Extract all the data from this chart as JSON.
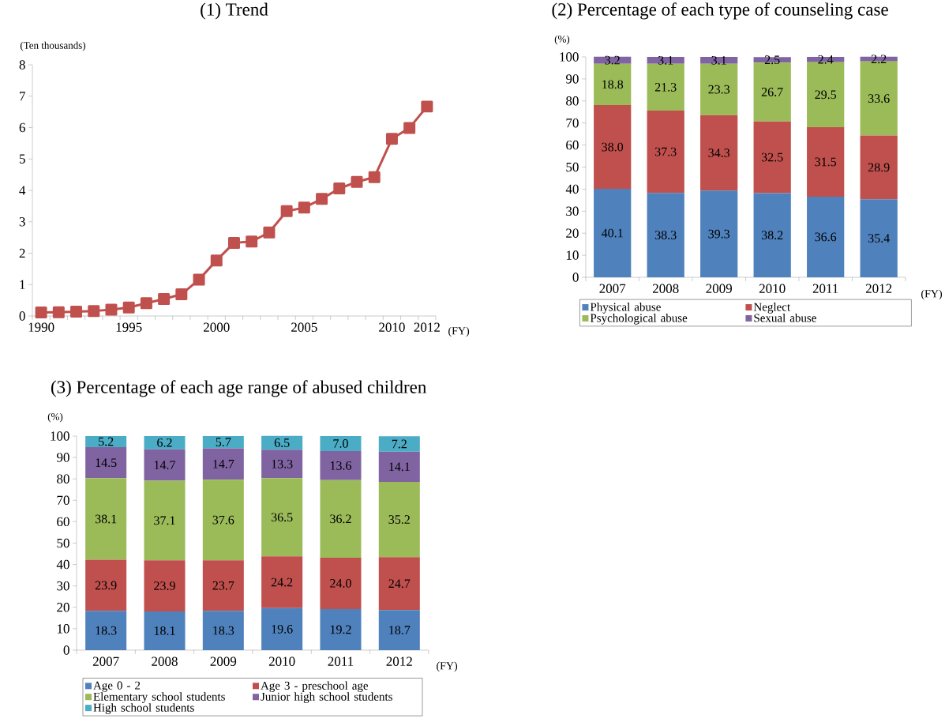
{
  "chart_data": [
    {
      "type": "line",
      "title": "(1) Trend",
      "ylabel": "(Ten thousands)",
      "xlabel": "(FY)",
      "categories": [
        "1990",
        null,
        null,
        null,
        null,
        "1995",
        null,
        null,
        null,
        null,
        "2000",
        null,
        null,
        null,
        null,
        "2005",
        null,
        null,
        null,
        null,
        "2010",
        null,
        "2012"
      ],
      "values": [
        0.11,
        0.12,
        0.14,
        0.16,
        0.2,
        0.27,
        0.41,
        0.54,
        0.69,
        1.16,
        1.77,
        2.33,
        2.37,
        2.66,
        3.34,
        3.45,
        3.73,
        4.06,
        4.27,
        4.42,
        5.64,
        5.99,
        6.67
      ],
      "color": "#c0504d",
      "marker": "square",
      "ylim": [
        0,
        8
      ],
      "yticks": [
        0,
        1,
        2,
        3,
        4,
        5,
        6,
        7,
        8
      ]
    },
    {
      "type": "bar",
      "stacked": true,
      "title": "(2) Percentage of each type of counseling case",
      "ylabel": "(%)",
      "xlabel": "(FY)",
      "categories": [
        "2007",
        "2008",
        "2009",
        "2010",
        "2011",
        "2012"
      ],
      "series": [
        {
          "name": "Physical abuse",
          "color": "#4f81bd",
          "values": [
            40.1,
            38.3,
            39.3,
            38.2,
            36.6,
            35.4
          ],
          "value_labels": [
            "40.1",
            "38.3",
            "39.3",
            "38.2",
            "36.6",
            "35.4"
          ]
        },
        {
          "name": "Neglect",
          "color": "#c0504d",
          "values": [
            38.0,
            37.3,
            34.3,
            32.5,
            31.5,
            28.9
          ],
          "value_labels": [
            "38.0",
            "37.3",
            "34.3",
            "32.5",
            "31.5",
            "28.9"
          ]
        },
        {
          "name": "Psychological abuse",
          "color": "#9bbb59",
          "values": [
            18.8,
            21.3,
            23.3,
            26.7,
            29.5,
            33.6
          ],
          "value_labels": [
            "18.8",
            "21.3",
            "23.3",
            "26.7",
            "29.5",
            "33.6"
          ]
        },
        {
          "name": "Sexual abuse",
          "color": "#8064a2",
          "values": [
            3.2,
            3.1,
            3.1,
            2.5,
            2.4,
            2.2
          ],
          "value_labels": [
            "3.2",
            "3.1",
            "3.1",
            "2.5",
            "2.4",
            "2.2"
          ]
        }
      ],
      "ylim": [
        0,
        100
      ],
      "yticks": [
        0,
        10,
        20,
        30,
        40,
        50,
        60,
        70,
        80,
        90,
        100
      ],
      "legend": "bottom"
    },
    {
      "type": "bar",
      "stacked": true,
      "title": "(3) Percentage of each age range of abused children",
      "ylabel": "(%)",
      "xlabel": "(FY)",
      "categories": [
        "2007",
        "2008",
        "2009",
        "2010",
        "2011",
        "2012"
      ],
      "series": [
        {
          "name": "Age 0 - 2",
          "color": "#4f81bd",
          "values": [
            18.3,
            18.1,
            18.3,
            19.6,
            19.2,
            18.7
          ],
          "value_labels": [
            "18.3",
            "18.1",
            "18.3",
            "19.6",
            "19.2",
            "18.7"
          ]
        },
        {
          "name": "Age 3 - preschool age",
          "color": "#c0504d",
          "values": [
            23.9,
            23.9,
            23.7,
            24.2,
            24.0,
            24.7
          ],
          "value_labels": [
            "23.9",
            "23.9",
            "23.7",
            "24.2",
            "24.0",
            "24.7"
          ]
        },
        {
          "name": "Elementary school students",
          "color": "#9bbb59",
          "values": [
            38.1,
            37.1,
            37.6,
            36.5,
            36.2,
            35.2
          ],
          "value_labels": [
            "38.1",
            "37.1",
            "37.6",
            "36.5",
            "36.2",
            "35.2"
          ]
        },
        {
          "name": "Junior high school students",
          "color": "#8064a2",
          "values": [
            14.5,
            14.7,
            14.7,
            13.3,
            13.6,
            14.1
          ],
          "value_labels": [
            "14.5",
            "14.7",
            "14.7",
            "13.3",
            "13.6",
            "14.1"
          ]
        },
        {
          "name": "High school students",
          "color": "#4bacc6",
          "values": [
            5.2,
            6.2,
            5.7,
            6.5,
            7.0,
            7.2
          ],
          "value_labels": [
            "5.2",
            "6.2",
            "5.7",
            "6.5",
            "7.0",
            "7.2"
          ]
        }
      ],
      "ylim": [
        0,
        100
      ],
      "yticks": [
        0,
        10,
        20,
        30,
        40,
        50,
        60,
        70,
        80,
        90,
        100
      ],
      "legend": "bottom"
    }
  ]
}
